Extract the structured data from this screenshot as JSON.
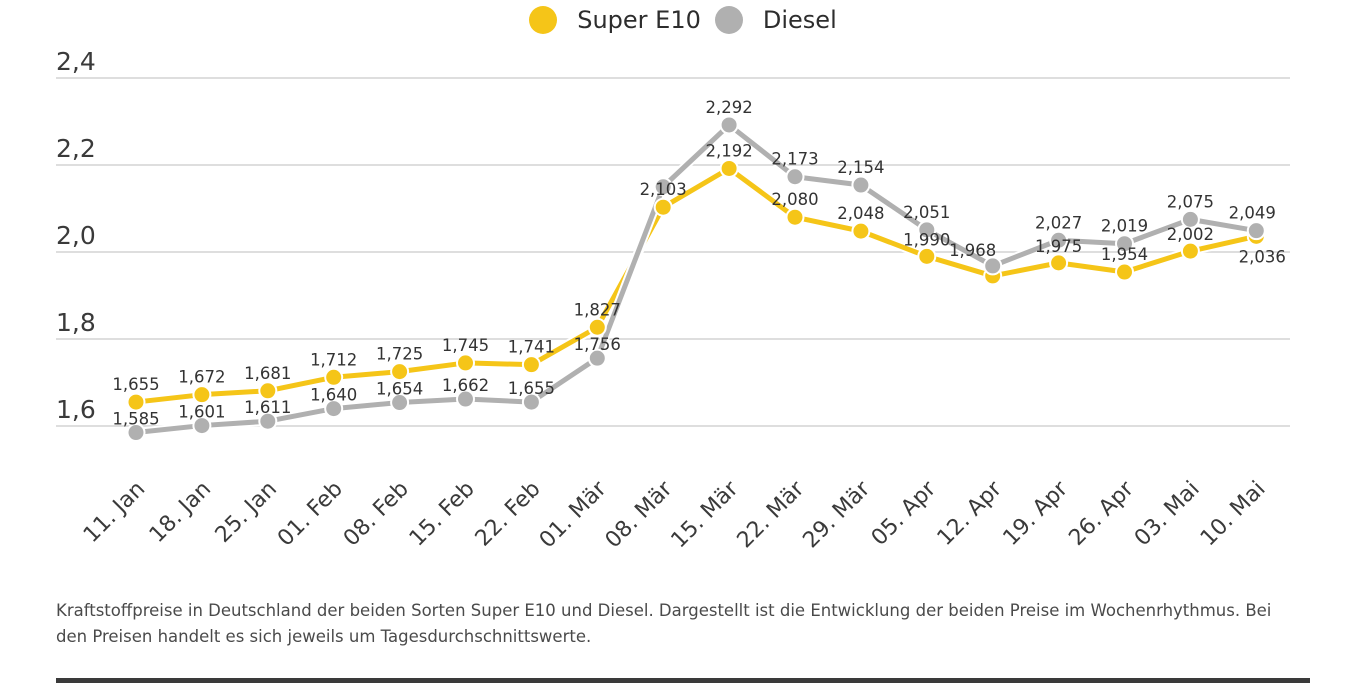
{
  "legend": [
    {
      "label": "Super E10",
      "color": "#f5c518"
    },
    {
      "label": "Diesel",
      "color": "#b0b0b0"
    }
  ],
  "caption": "Kraftstoffpreise in Deutschland der beiden Sorten Super E10 und Diesel. Dargestellt ist die Entwicklung der beiden Preise im Wochenrhythmus. Bei den Preisen handelt es sich jeweils um Tagesdurchschnittswerte.",
  "chart_data": {
    "type": "line",
    "title": "",
    "xlabel": "",
    "ylabel": "",
    "ylim": [
      1.6,
      2.4
    ],
    "yticks": [
      1.6,
      1.8,
      2.0,
      2.2,
      2.4
    ],
    "ytick_labels": [
      "1,6",
      "1,8",
      "2,0",
      "2,2",
      "2,4"
    ],
    "grid": true,
    "legend_position": "top-center",
    "categories": [
      "11. Jan",
      "18. Jan",
      "25. Jan",
      "01. Feb",
      "08. Feb",
      "15. Feb",
      "22. Feb",
      "01. Mär",
      "08. Mär",
      "15. Mär",
      "22. Mär",
      "29. Mär",
      "05. Apr",
      "12. Apr",
      "19. Apr",
      "26. Apr",
      "03. Mai",
      "10. Mai"
    ],
    "series": [
      {
        "name": "Super E10",
        "color": "#f5c518",
        "values": [
          1.655,
          1.672,
          1.681,
          1.712,
          1.725,
          1.745,
          1.741,
          1.827,
          2.103,
          2.192,
          2.08,
          2.048,
          1.99,
          1.945,
          1.975,
          1.954,
          2.002,
          2.036
        ],
        "labels": [
          "1,655",
          "1,672",
          "1,681",
          "1,712",
          "1,725",
          "1,745",
          "1,741",
          "1,827",
          "2,103",
          "2,192",
          "2,080",
          "2,048",
          "1,990",
          "",
          "1,975",
          "1,954",
          "2,002",
          "2,036"
        ]
      },
      {
        "name": "Diesel",
        "color": "#b0b0b0",
        "values": [
          1.585,
          1.601,
          1.611,
          1.64,
          1.654,
          1.662,
          1.655,
          1.756,
          2.15,
          2.292,
          2.173,
          2.154,
          2.051,
          1.968,
          2.027,
          2.019,
          2.075,
          2.049
        ],
        "labels": [
          "1,585",
          "1,601",
          "1,611",
          "1,640",
          "1,654",
          "1,662",
          "1,655",
          "1,756",
          "",
          "2,292",
          "2,173",
          "2,154",
          "2,051",
          "1,968",
          "2,027",
          "2,019",
          "2,075",
          "2,049"
        ]
      }
    ]
  }
}
